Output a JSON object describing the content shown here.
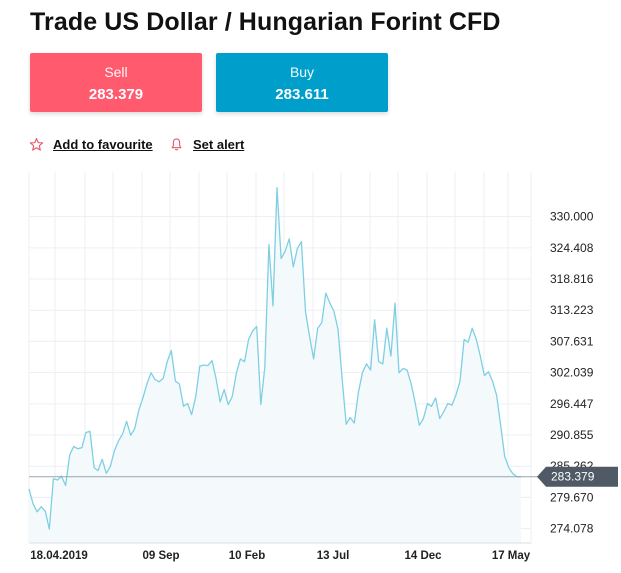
{
  "page": {
    "title": "Trade US Dollar / Hungarian Forint CFD"
  },
  "trade": {
    "sell_label": "Sell",
    "sell_price": "283.379",
    "buy_label": "Buy",
    "buy_price": "283.611",
    "sell_color": "#ff5a6e",
    "buy_color": "#009fcb"
  },
  "actions": {
    "favourite_label": "Add to favourite",
    "favourite_icon": "star-icon",
    "alert_label": "Set alert",
    "alert_icon": "bell-icon"
  },
  "chart_data": {
    "type": "area",
    "y_ticks": [
      "330.000",
      "324.408",
      "318.816",
      "313.223",
      "307.631",
      "302.039",
      "296.447",
      "290.855",
      "285.262",
      "279.670",
      "274.078"
    ],
    "x_ticks": [
      "18.04.2019",
      "09 Sep",
      "10 Feb",
      "13 Jul",
      "14 Dec",
      "17 May"
    ],
    "current_price": "283.379",
    "ylim": [
      271.5,
      338
    ],
    "grid": true,
    "line_color": "#7ecfe3",
    "values": [
      281.2,
      278.5,
      277.1,
      278.0,
      277.2,
      274.0,
      283.0,
      282.8,
      283.5,
      281.8,
      287.3,
      288.8,
      288.4,
      288.6,
      291.3,
      291.5,
      285.0,
      284.5,
      286.5,
      284.0,
      285.2,
      288.0,
      289.8,
      291.0,
      293.3,
      290.8,
      292.0,
      295.3,
      297.5,
      300.0,
      302.0,
      300.8,
      300.4,
      301.0,
      304.0,
      306.0,
      300.5,
      300.0,
      296.0,
      296.5,
      294.5,
      297.7,
      303.2,
      303.4,
      303.3,
      304.2,
      301.0,
      296.8,
      299.0,
      296.3,
      297.8,
      302.0,
      304.5,
      304.0,
      308.0,
      309.5,
      310.3,
      296.3,
      303.0,
      325.0,
      314.0,
      335.2,
      322.5,
      323.8,
      326.0,
      321.0,
      324.3,
      325.5,
      313.0,
      308.5,
      304.5,
      310.0,
      311.0,
      316.3,
      314.5,
      313.0,
      309.8,
      301.0,
      292.8,
      294.0,
      293.0,
      298.5,
      302.0,
      303.6,
      302.5,
      311.5,
      304.0,
      303.6,
      310.0,
      305.0,
      314.5,
      302.0,
      302.8,
      302.5,
      300.0,
      296.5,
      292.6,
      293.8,
      296.5,
      296.0,
      297.5,
      293.8,
      295.0,
      296.5,
      296.2,
      298.0,
      300.5,
      308.0,
      307.5,
      310.0,
      308.0,
      305.0,
      301.5,
      302.2,
      300.5,
      298.0,
      292.5,
      287.0,
      285.0,
      283.9,
      283.4,
      283.379
    ]
  }
}
